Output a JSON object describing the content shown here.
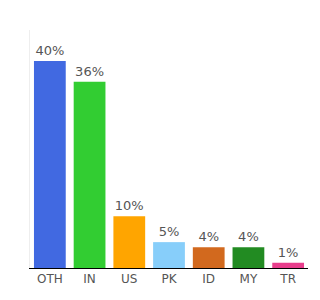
{
  "chart_data": {
    "type": "bar",
    "categories": [
      "OTH",
      "IN",
      "US",
      "PK",
      "ID",
      "MY",
      "TR"
    ],
    "values": [
      40,
      36,
      10,
      5,
      4,
      4,
      1
    ],
    "value_labels": [
      "40%",
      "36%",
      "10%",
      "5%",
      "4%",
      "4%",
      "1%"
    ],
    "colors": [
      "#4169e1",
      "#32cd32",
      "#ffa500",
      "#87cefa",
      "#d2691e",
      "#228b22",
      "#e83e8c"
    ],
    "ylim": [
      0,
      46
    ],
    "data_labels": true,
    "tick_labels": "x",
    "grid": false
  }
}
